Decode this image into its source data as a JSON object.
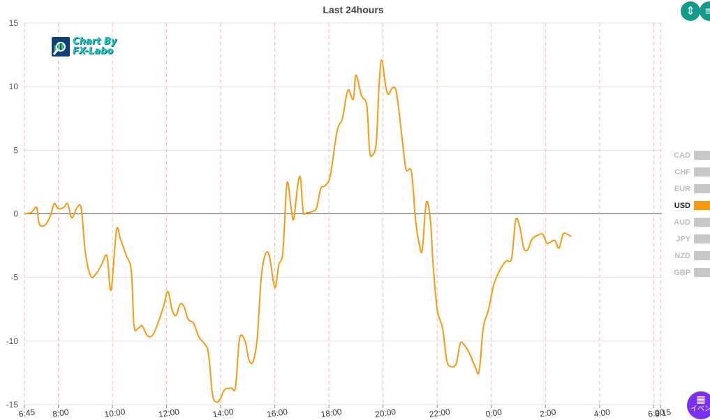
{
  "chart_data": {
    "type": "line",
    "title": "Last 24hours",
    "ylim": [
      -15,
      15
    ],
    "yticks": [
      15,
      10,
      5,
      0,
      -5,
      -10,
      -15
    ],
    "x_tick_labels": [
      "6:45",
      "8:00",
      "10:00",
      "12:00",
      "14:00",
      "16:00",
      "18:00",
      "20:00",
      "22:00",
      "0:00",
      "2:00",
      "4:00",
      "6:00",
      "6:15"
    ],
    "x_tick_hours": [
      6.75,
      8,
      10,
      12,
      14,
      16,
      18,
      20,
      22,
      24,
      26,
      28,
      30,
      30.25
    ],
    "x_range_hours": [
      6.75,
      30.3
    ],
    "grid": true,
    "legend_placement": "right",
    "legend": [
      {
        "name": "CAD",
        "active": false
      },
      {
        "name": "CHF",
        "active": false
      },
      {
        "name": "EUR",
        "active": false
      },
      {
        "name": "USD",
        "active": true
      },
      {
        "name": "AUD",
        "active": false
      },
      {
        "name": "JPY",
        "active": false
      },
      {
        "name": "NZD",
        "active": false
      },
      {
        "name": "GBP",
        "active": false
      }
    ],
    "series": [
      {
        "name": "USD",
        "color": "#f29b13",
        "points": [
          [
            6.75,
            0.0
          ],
          [
            7.0,
            0.1
          ],
          [
            7.2,
            0.5
          ],
          [
            7.3,
            -0.8
          ],
          [
            7.5,
            -0.9
          ],
          [
            7.7,
            -0.2
          ],
          [
            7.85,
            0.8
          ],
          [
            8.0,
            0.4
          ],
          [
            8.2,
            0.5
          ],
          [
            8.35,
            0.8
          ],
          [
            8.5,
            -0.3
          ],
          [
            8.7,
            0.5
          ],
          [
            8.85,
            0.4
          ],
          [
            9.0,
            -3.0
          ],
          [
            9.2,
            -4.9
          ],
          [
            9.4,
            -4.7
          ],
          [
            9.6,
            -4.0
          ],
          [
            9.8,
            -3.3
          ],
          [
            9.95,
            -6.0
          ],
          [
            10.15,
            -1.3
          ],
          [
            10.3,
            -2.0
          ],
          [
            10.5,
            -3.2
          ],
          [
            10.7,
            -4.5
          ],
          [
            10.8,
            -8.8
          ],
          [
            10.95,
            -9.0
          ],
          [
            11.1,
            -8.8
          ],
          [
            11.3,
            -9.6
          ],
          [
            11.5,
            -9.5
          ],
          [
            11.7,
            -8.5
          ],
          [
            11.9,
            -7.2
          ],
          [
            12.05,
            -6.1
          ],
          [
            12.2,
            -7.5
          ],
          [
            12.35,
            -8.0
          ],
          [
            12.5,
            -7.1
          ],
          [
            12.65,
            -7.3
          ],
          [
            12.8,
            -8.3
          ],
          [
            13.0,
            -8.6
          ],
          [
            13.2,
            -9.7
          ],
          [
            13.4,
            -10.2
          ],
          [
            13.55,
            -11.0
          ],
          [
            13.7,
            -14.2
          ],
          [
            13.85,
            -14.8
          ],
          [
            14.0,
            -14.5
          ],
          [
            14.15,
            -13.8
          ],
          [
            14.4,
            -13.7
          ],
          [
            14.55,
            -13.6
          ],
          [
            14.7,
            -9.8
          ],
          [
            14.9,
            -10.0
          ],
          [
            15.05,
            -11.5
          ],
          [
            15.2,
            -11.6
          ],
          [
            15.35,
            -9.8
          ],
          [
            15.5,
            -5.0
          ],
          [
            15.65,
            -3.2
          ],
          [
            15.8,
            -3.3
          ],
          [
            16.0,
            -5.8
          ],
          [
            16.15,
            -4.0
          ],
          [
            16.3,
            -3.0
          ],
          [
            16.45,
            2.4
          ],
          [
            16.6,
            0.5
          ],
          [
            16.7,
            -0.4
          ],
          [
            16.85,
            2.3
          ],
          [
            16.95,
            2.8
          ],
          [
            17.05,
            0.2
          ],
          [
            17.2,
            0.1
          ],
          [
            17.4,
            0.2
          ],
          [
            17.55,
            0.5
          ],
          [
            17.7,
            2.0
          ],
          [
            17.85,
            2.2
          ],
          [
            18.05,
            3.0
          ],
          [
            18.3,
            6.5
          ],
          [
            18.5,
            7.5
          ],
          [
            18.7,
            9.7
          ],
          [
            18.9,
            9.0
          ],
          [
            19.0,
            10.9
          ],
          [
            19.2,
            9.3
          ],
          [
            19.4,
            8.5
          ],
          [
            19.5,
            5.0
          ],
          [
            19.6,
            4.6
          ],
          [
            19.75,
            5.6
          ],
          [
            19.85,
            10.0
          ],
          [
            19.95,
            12.1
          ],
          [
            20.1,
            10.0
          ],
          [
            20.2,
            9.4
          ],
          [
            20.35,
            9.9
          ],
          [
            20.5,
            9.5
          ],
          [
            20.7,
            6.0
          ],
          [
            20.85,
            3.5
          ],
          [
            21.05,
            3.3
          ],
          [
            21.2,
            -0.5
          ],
          [
            21.35,
            -2.5
          ],
          [
            21.45,
            -2.8
          ],
          [
            21.6,
            0.9
          ],
          [
            21.75,
            -0.5
          ],
          [
            21.85,
            -4.0
          ],
          [
            22.0,
            -7.5
          ],
          [
            22.2,
            -9.0
          ],
          [
            22.35,
            -11.5
          ],
          [
            22.5,
            -12.0
          ],
          [
            22.7,
            -11.8
          ],
          [
            22.85,
            -10.2
          ],
          [
            23.0,
            -10.3
          ],
          [
            23.2,
            -11.0
          ],
          [
            23.4,
            -12.0
          ],
          [
            23.55,
            -12.4
          ],
          [
            23.7,
            -9.0
          ],
          [
            23.9,
            -7.5
          ],
          [
            24.1,
            -5.5
          ],
          [
            24.35,
            -4.3
          ],
          [
            24.55,
            -3.7
          ],
          [
            24.75,
            -3.5
          ],
          [
            24.9,
            -0.5
          ],
          [
            25.05,
            -1.0
          ],
          [
            25.2,
            -2.7
          ],
          [
            25.35,
            -2.8
          ],
          [
            25.5,
            -2.0
          ],
          [
            25.7,
            -1.7
          ],
          [
            25.9,
            -1.6
          ],
          [
            26.05,
            -2.3
          ],
          [
            26.2,
            -2.2
          ],
          [
            26.35,
            -2.1
          ],
          [
            26.5,
            -2.7
          ],
          [
            26.65,
            -1.6
          ],
          [
            26.8,
            -1.6
          ],
          [
            26.95,
            -1.8
          ]
        ]
      }
    ]
  },
  "logo": {
    "line1": "Chart By",
    "line2": "FX-Labo"
  },
  "controls": {
    "event_label": "イベン"
  }
}
